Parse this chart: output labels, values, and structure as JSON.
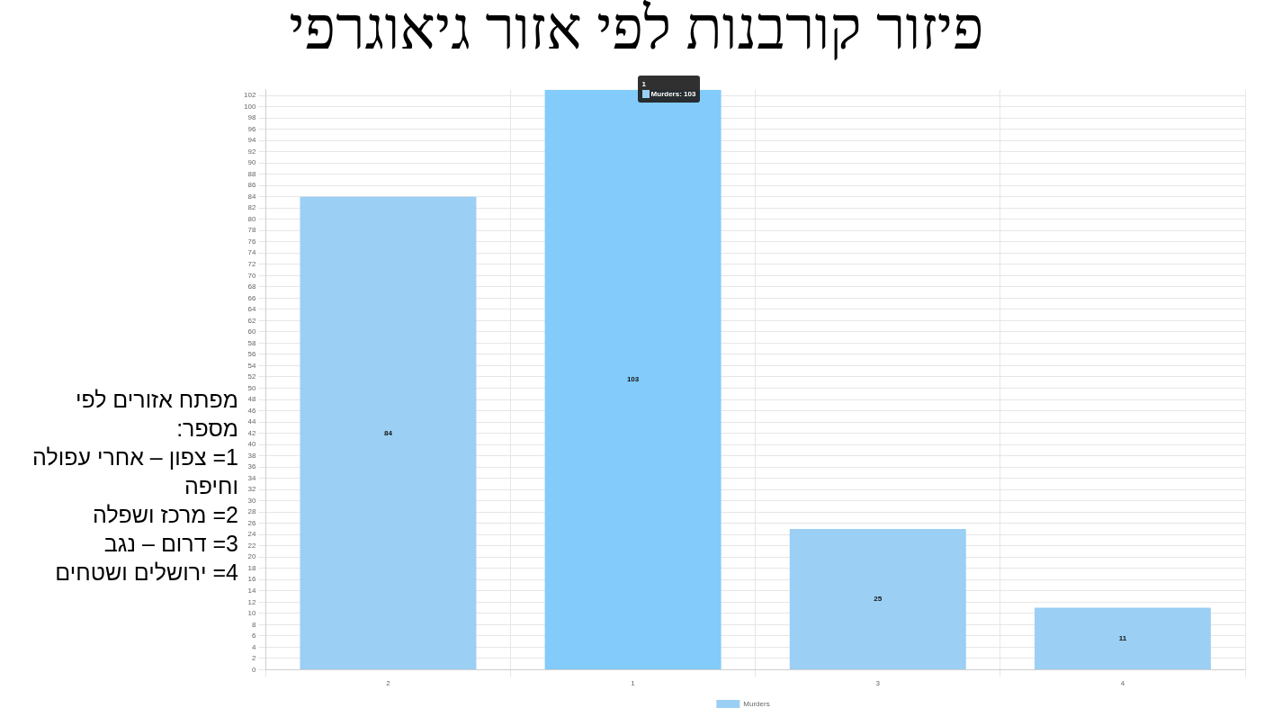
{
  "chart_data": {
    "type": "bar",
    "title": "פיזור קורבנות לפי אזור גיאוגרפי",
    "categories": [
      "2",
      "1",
      "3",
      "4"
    ],
    "series": [
      {
        "name": "Murders",
        "color": "#9bcff4",
        "colors": [
          "#9bcff4",
          "#82cbfb",
          "#9bcff4",
          "#9bcff4"
        ],
        "values": [
          84,
          103,
          25,
          11
        ]
      }
    ],
    "ylim": [
      0,
      103
    ],
    "yticks": [
      0,
      2,
      4,
      6,
      8,
      10,
      12,
      14,
      16,
      18,
      20,
      22,
      24,
      26,
      28,
      30,
      32,
      34,
      36,
      38,
      40,
      42,
      44,
      46,
      48,
      50,
      52,
      54,
      56,
      58,
      60,
      62,
      64,
      66,
      68,
      70,
      72,
      74,
      76,
      78,
      80,
      82,
      84,
      86,
      88,
      90,
      92,
      94,
      96,
      98,
      100,
      102
    ],
    "grid": true,
    "legend": "bottom",
    "data_labels": true,
    "annotations": [
      {
        "text": "Murders: 103",
        "x": "1",
        "y": 103
      },
      "מפתח אזורים לפי מספר:",
      "1= צפון – אחרי עפולה וחיפה",
      "2= מרכז ושפלה",
      "3= דרום – נגב",
      "4= ירושלים ושטחים"
    ]
  }
}
